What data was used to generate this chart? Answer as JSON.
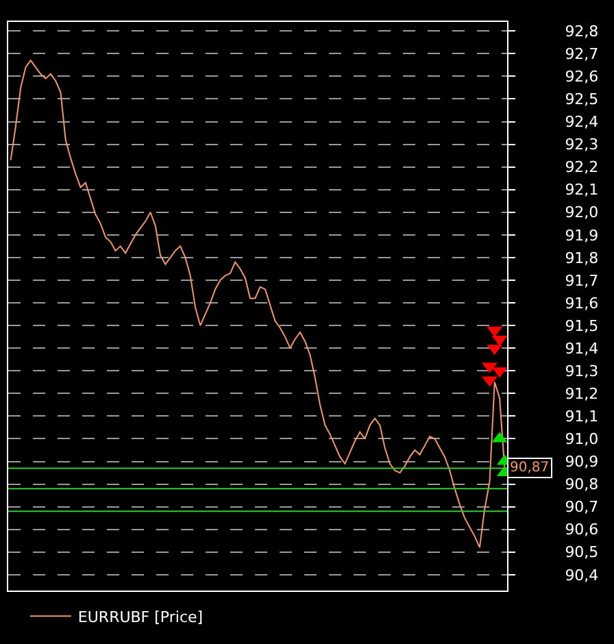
{
  "chart_data": {
    "type": "line",
    "legend": "bottom left",
    "grid": "y",
    "tick_labels": "y",
    "ylim": [
      90.33,
      92.84
    ],
    "categories": [
      null,
      null,
      null,
      null,
      null,
      null,
      null,
      null,
      null,
      null,
      null,
      null,
      null,
      null,
      null,
      null,
      null,
      null,
      null,
      null,
      null,
      null,
      null,
      null,
      null,
      null,
      null,
      null,
      null,
      null,
      null,
      null,
      null,
      null,
      null,
      null,
      null,
      null,
      null,
      null,
      null,
      null,
      null,
      null,
      null,
      null,
      null,
      null,
      null,
      null,
      null,
      null,
      null,
      null,
      null,
      null,
      null,
      null,
      null,
      null,
      null,
      null,
      null,
      null,
      null,
      null,
      null,
      null,
      null,
      null,
      null,
      null,
      null,
      null,
      null,
      null,
      null,
      null,
      null,
      null,
      null,
      null,
      null,
      null,
      null,
      null,
      null,
      null,
      null,
      null,
      null,
      null,
      null,
      null,
      null,
      null,
      null,
      null,
      null,
      null
    ],
    "yticks": [
      {
        "value": 90.4,
        "label": "90,4"
      },
      {
        "value": 90.5,
        "label": "90,5"
      },
      {
        "value": 90.6,
        "label": "90,6"
      },
      {
        "value": 90.7,
        "label": "90,7"
      },
      {
        "value": 90.8,
        "label": "90,8"
      },
      {
        "value": 90.9,
        "label": "90,9"
      },
      {
        "value": 91.0,
        "label": "91,0"
      },
      {
        "value": 91.1,
        "label": "91,1"
      },
      {
        "value": 91.2,
        "label": "91,2"
      },
      {
        "value": 91.3,
        "label": "91,3"
      },
      {
        "value": 91.4,
        "label": "91,4"
      },
      {
        "value": 91.5,
        "label": "91,5"
      },
      {
        "value": 91.6,
        "label": "91,6"
      },
      {
        "value": 91.7,
        "label": "91,7"
      },
      {
        "value": 91.8,
        "label": "91,8"
      },
      {
        "value": 91.9,
        "label": "91,9"
      },
      {
        "value": 92.0,
        "label": "92,0"
      },
      {
        "value": 92.1,
        "label": "92,1"
      },
      {
        "value": 92.2,
        "label": "92,2"
      },
      {
        "value": 92.3,
        "label": "92,3"
      },
      {
        "value": 92.4,
        "label": "92,4"
      },
      {
        "value": 92.5,
        "label": "92,5"
      },
      {
        "value": 92.6,
        "label": "92,6"
      },
      {
        "value": 92.7,
        "label": "92,7"
      },
      {
        "value": 92.8,
        "label": "92,8"
      }
    ],
    "ref_lines": [
      {
        "axis": "y",
        "value": 90.87,
        "label": "90,87",
        "color": "#33cc33"
      },
      {
        "axis": "y",
        "value": 90.78,
        "label": null,
        "color": "#33cc33"
      },
      {
        "axis": "y",
        "value": 90.68,
        "label": null,
        "color": "#33cc33"
      }
    ],
    "series": [
      {
        "name": "EURRUBF [Price]",
        "color": "#f4956a",
        "marker": "none",
        "values": [
          92.23,
          92.38,
          92.55,
          92.64,
          92.67,
          92.64,
          92.61,
          92.59,
          92.61,
          92.58,
          92.53,
          92.32,
          92.24,
          92.17,
          92.11,
          92.13,
          92.06,
          91.99,
          91.95,
          91.89,
          91.87,
          91.83,
          91.85,
          91.82,
          91.86,
          91.9,
          91.93,
          91.96,
          92.0,
          91.94,
          91.81,
          91.77,
          91.8,
          91.83,
          91.85,
          91.8,
          91.72,
          91.58,
          91.5,
          91.55,
          91.6,
          91.66,
          91.7,
          91.72,
          91.73,
          91.78,
          91.75,
          91.71,
          91.62,
          91.62,
          91.67,
          91.66,
          91.59,
          91.52,
          91.49,
          91.45,
          91.4,
          91.44,
          91.47,
          91.43,
          91.37,
          91.27,
          91.15,
          91.06,
          91.02,
          90.97,
          90.92,
          90.89,
          90.94,
          90.99,
          91.03,
          91.0,
          91.06,
          91.09,
          91.06,
          90.96,
          90.89,
          90.86,
          90.85,
          90.88,
          90.92,
          90.95,
          90.93,
          90.97,
          91.01,
          91.0,
          90.96,
          90.92,
          90.86,
          90.78,
          90.71,
          90.65,
          90.61,
          90.57,
          90.52,
          90.69,
          90.81,
          91.25,
          91.18,
          90.87
        ]
      },
      {
        "type": "scatter",
        "color": "#ff0000",
        "marker": "triangle-down",
        "values": [
          null,
          null,
          null,
          null,
          null,
          null,
          null,
          null,
          null,
          null,
          null,
          null,
          null,
          null,
          null,
          null,
          null,
          null,
          null,
          null,
          null,
          null,
          null,
          null,
          null,
          null,
          null,
          null,
          null,
          null,
          null,
          null,
          null,
          null,
          null,
          null,
          null,
          null,
          null,
          null,
          null,
          null,
          null,
          null,
          null,
          null,
          null,
          null,
          null,
          null,
          null,
          null,
          null,
          null,
          null,
          null,
          null,
          null,
          null,
          null,
          null,
          null,
          null,
          null,
          null,
          null,
          null,
          null,
          null,
          null,
          null,
          null,
          null,
          null,
          null,
          null,
          null,
          null,
          null,
          null,
          null,
          null,
          null,
          null,
          null,
          null,
          null,
          null,
          null,
          null,
          null,
          null,
          null,
          null,
          null,
          null,
          91.32,
          91.48,
          91.3,
          null
        ]
      },
      {
        "type": "scatter",
        "color": "#ff0000",
        "marker": "triangle-down",
        "values": [
          null,
          null,
          null,
          null,
          null,
          null,
          null,
          null,
          null,
          null,
          null,
          null,
          null,
          null,
          null,
          null,
          null,
          null,
          null,
          null,
          null,
          null,
          null,
          null,
          null,
          null,
          null,
          null,
          null,
          null,
          null,
          null,
          null,
          null,
          null,
          null,
          null,
          null,
          null,
          null,
          null,
          null,
          null,
          null,
          null,
          null,
          null,
          null,
          null,
          null,
          null,
          null,
          null,
          null,
          null,
          null,
          null,
          null,
          null,
          null,
          null,
          null,
          null,
          null,
          null,
          null,
          null,
          null,
          null,
          null,
          null,
          null,
          null,
          null,
          null,
          null,
          null,
          null,
          null,
          null,
          null,
          null,
          null,
          null,
          null,
          null,
          null,
          null,
          null,
          null,
          null,
          null,
          null,
          null,
          null,
          null,
          91.26,
          91.4,
          91.44,
          null
        ]
      },
      {
        "type": "scatter",
        "color": "#00dd00",
        "marker": "triangle",
        "values": [
          null,
          null,
          null,
          null,
          null,
          null,
          null,
          null,
          null,
          null,
          null,
          null,
          null,
          null,
          null,
          null,
          null,
          null,
          null,
          null,
          null,
          null,
          null,
          null,
          null,
          null,
          null,
          null,
          null,
          null,
          null,
          null,
          null,
          null,
          null,
          null,
          null,
          null,
          null,
          null,
          null,
          null,
          null,
          null,
          null,
          null,
          null,
          null,
          null,
          null,
          null,
          null,
          null,
          null,
          null,
          null,
          null,
          null,
          null,
          null,
          null,
          null,
          null,
          null,
          null,
          null,
          null,
          null,
          null,
          null,
          null,
          null,
          null,
          null,
          null,
          null,
          null,
          null,
          null,
          null,
          null,
          null,
          null,
          null,
          null,
          null,
          null,
          null,
          null,
          null,
          null,
          null,
          null,
          null,
          null,
          null,
          null,
          null,
          91.0,
          90.9
        ]
      },
      {
        "type": "scatter",
        "color": "#00dd00",
        "marker": "triangle",
        "values": [
          null,
          null,
          null,
          null,
          null,
          null,
          null,
          null,
          null,
          null,
          null,
          null,
          null,
          null,
          null,
          null,
          null,
          null,
          null,
          null,
          null,
          null,
          null,
          null,
          null,
          null,
          null,
          null,
          null,
          null,
          null,
          null,
          null,
          null,
          null,
          null,
          null,
          null,
          null,
          null,
          null,
          null,
          null,
          null,
          null,
          null,
          null,
          null,
          null,
          null,
          null,
          null,
          null,
          null,
          null,
          null,
          null,
          null,
          null,
          null,
          null,
          null,
          null,
          null,
          null,
          null,
          null,
          null,
          null,
          null,
          null,
          null,
          null,
          null,
          null,
          null,
          null,
          null,
          null,
          null,
          null,
          null,
          null,
          null,
          null,
          null,
          null,
          null,
          null,
          null,
          null,
          null,
          null,
          null,
          null,
          null,
          null,
          null,
          null,
          90.85
        ]
      }
    ]
  }
}
